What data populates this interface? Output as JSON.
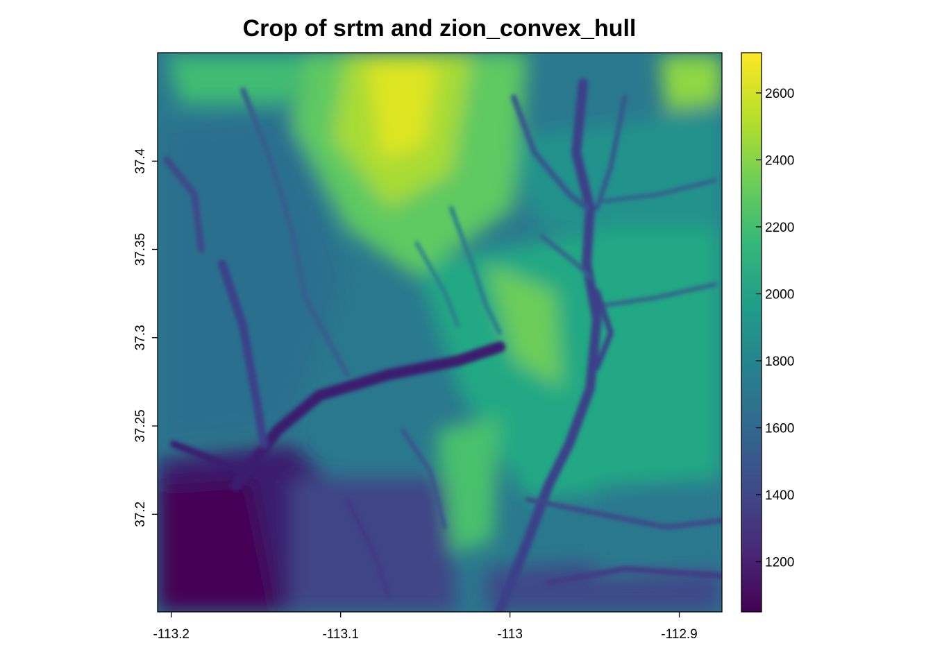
{
  "chart_data": {
    "type": "heatmap",
    "title": "Crop of srtm and zion_convex_hull",
    "xlabel": "",
    "ylabel": "",
    "xlim": [
      -113.2081,
      -112.8748
    ],
    "ylim": [
      37.1447,
      37.4614
    ],
    "x_ticks": [
      {
        "value": -113.2,
        "label": "-113.2"
      },
      {
        "value": -113.1,
        "label": "-113.1"
      },
      {
        "value": -113.0,
        "label": "-113"
      },
      {
        "value": -112.9,
        "label": "-112.9"
      }
    ],
    "y_ticks": [
      {
        "value": 37.2,
        "label": "37.2"
      },
      {
        "value": 37.25,
        "label": "37.25"
      },
      {
        "value": 37.3,
        "label": "37.3"
      },
      {
        "value": 37.35,
        "label": "37.35"
      },
      {
        "value": 37.4,
        "label": "37.4"
      }
    ],
    "colorbar": {
      "range": [
        1050,
        2720
      ],
      "ticks": [
        {
          "value": 1200,
          "label": "1200"
        },
        {
          "value": 1400,
          "label": "1400"
        },
        {
          "value": 1600,
          "label": "1600"
        },
        {
          "value": 1800,
          "label": "1800"
        },
        {
          "value": 2000,
          "label": "2000"
        },
        {
          "value": 2200,
          "label": "2200"
        },
        {
          "value": 2400,
          "label": "2400"
        },
        {
          "value": 2600,
          "label": "2600"
        }
      ],
      "palette": [
        "#440154",
        "#482878",
        "#3e4a89",
        "#31688e",
        "#26828e",
        "#1f9e89",
        "#35b779",
        "#6ece58",
        "#b5de2b",
        "#fde725"
      ]
    },
    "grid": false,
    "legend": "right colorbar"
  }
}
